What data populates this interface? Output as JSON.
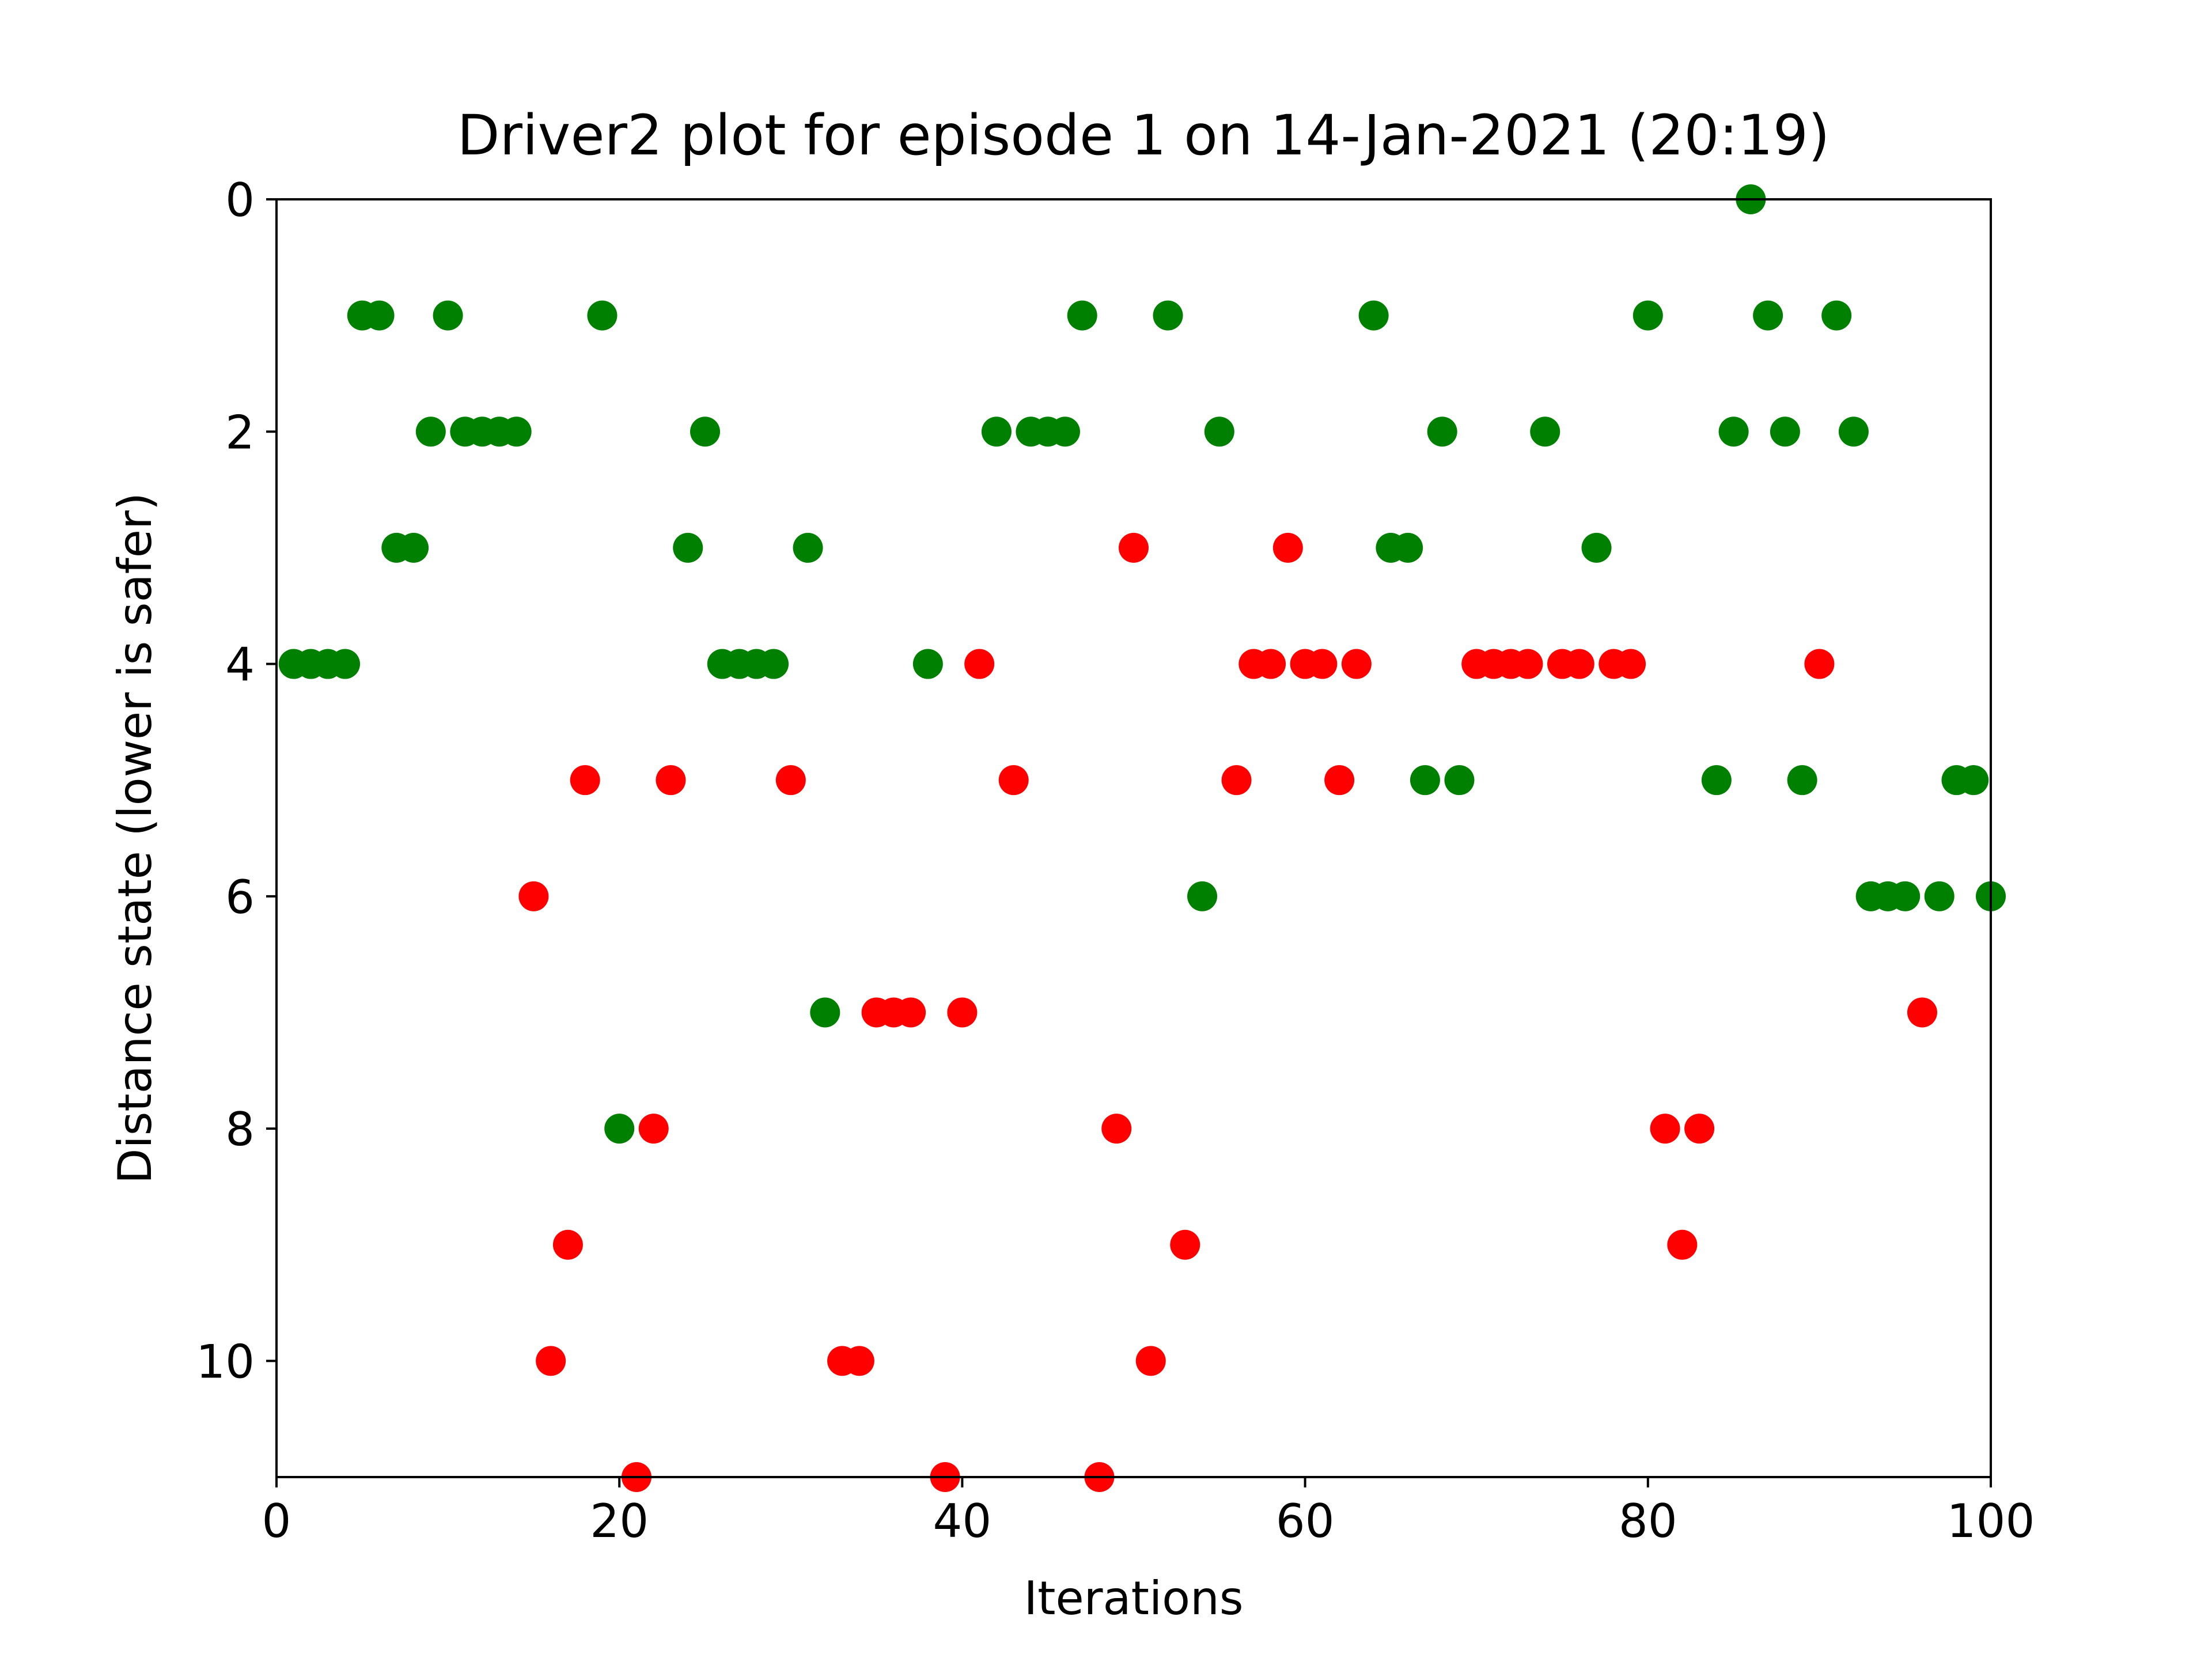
{
  "chart_data": {
    "type": "scatter",
    "title": "Driver2 plot for episode 1 on 14-Jan-2021 (20:19)",
    "xlabel": "Iterations",
    "ylabel": "Distance state (lower is safer)",
    "xlim": [
      0,
      100
    ],
    "ylim": [
      11,
      0
    ],
    "y_inverted": true,
    "grid": false,
    "x_ticks": [
      0,
      20,
      40,
      60,
      80,
      100
    ],
    "y_ticks": [
      0,
      2,
      4,
      6,
      8,
      10
    ],
    "colors": {
      "green": "#008000",
      "red": "#ff0000"
    },
    "series": [
      {
        "color": "#008000",
        "x": [
          1,
          2,
          3,
          4,
          5,
          6,
          7,
          8,
          9,
          10,
          11,
          12,
          13,
          14,
          19,
          20,
          24,
          25,
          26,
          27,
          28,
          29,
          31,
          32,
          38,
          42,
          44,
          45,
          46,
          47,
          52,
          54,
          55,
          64,
          65,
          66,
          67,
          68,
          69,
          74,
          77,
          80,
          84,
          85,
          86,
          87,
          88,
          89,
          91,
          92,
          93,
          94,
          95,
          97,
          98,
          99,
          100
        ],
        "y": [
          4,
          4,
          4,
          4,
          1,
          1,
          3,
          3,
          2,
          1,
          2,
          2,
          2,
          2,
          1,
          8,
          3,
          2,
          4,
          4,
          4,
          4,
          3,
          7,
          4,
          2,
          2,
          2,
          2,
          1,
          1,
          6,
          2,
          1,
          3,
          3,
          5,
          2,
          5,
          2,
          3,
          1,
          5,
          2,
          0,
          1,
          2,
          5,
          1,
          2,
          6,
          6,
          6,
          6,
          5,
          5,
          6
        ]
      },
      {
        "color": "#ff0000",
        "x": [
          15,
          16,
          17,
          18,
          21,
          22,
          23,
          30,
          33,
          34,
          35,
          36,
          37,
          39,
          40,
          41,
          43,
          48,
          49,
          50,
          51,
          53,
          56,
          57,
          58,
          59,
          60,
          61,
          62,
          63,
          70,
          71,
          72,
          73,
          75,
          76,
          78,
          79,
          81,
          82,
          83,
          90,
          96
        ],
        "y": [
          6,
          10,
          9,
          5,
          11,
          8,
          5,
          5,
          10,
          10,
          7,
          7,
          7,
          11,
          7,
          4,
          5,
          11,
          8,
          3,
          10,
          9,
          5,
          4,
          4,
          3,
          4,
          4,
          5,
          4,
          4,
          4,
          4,
          4,
          4,
          4,
          4,
          4,
          8,
          9,
          8,
          4,
          7
        ]
      }
    ]
  }
}
